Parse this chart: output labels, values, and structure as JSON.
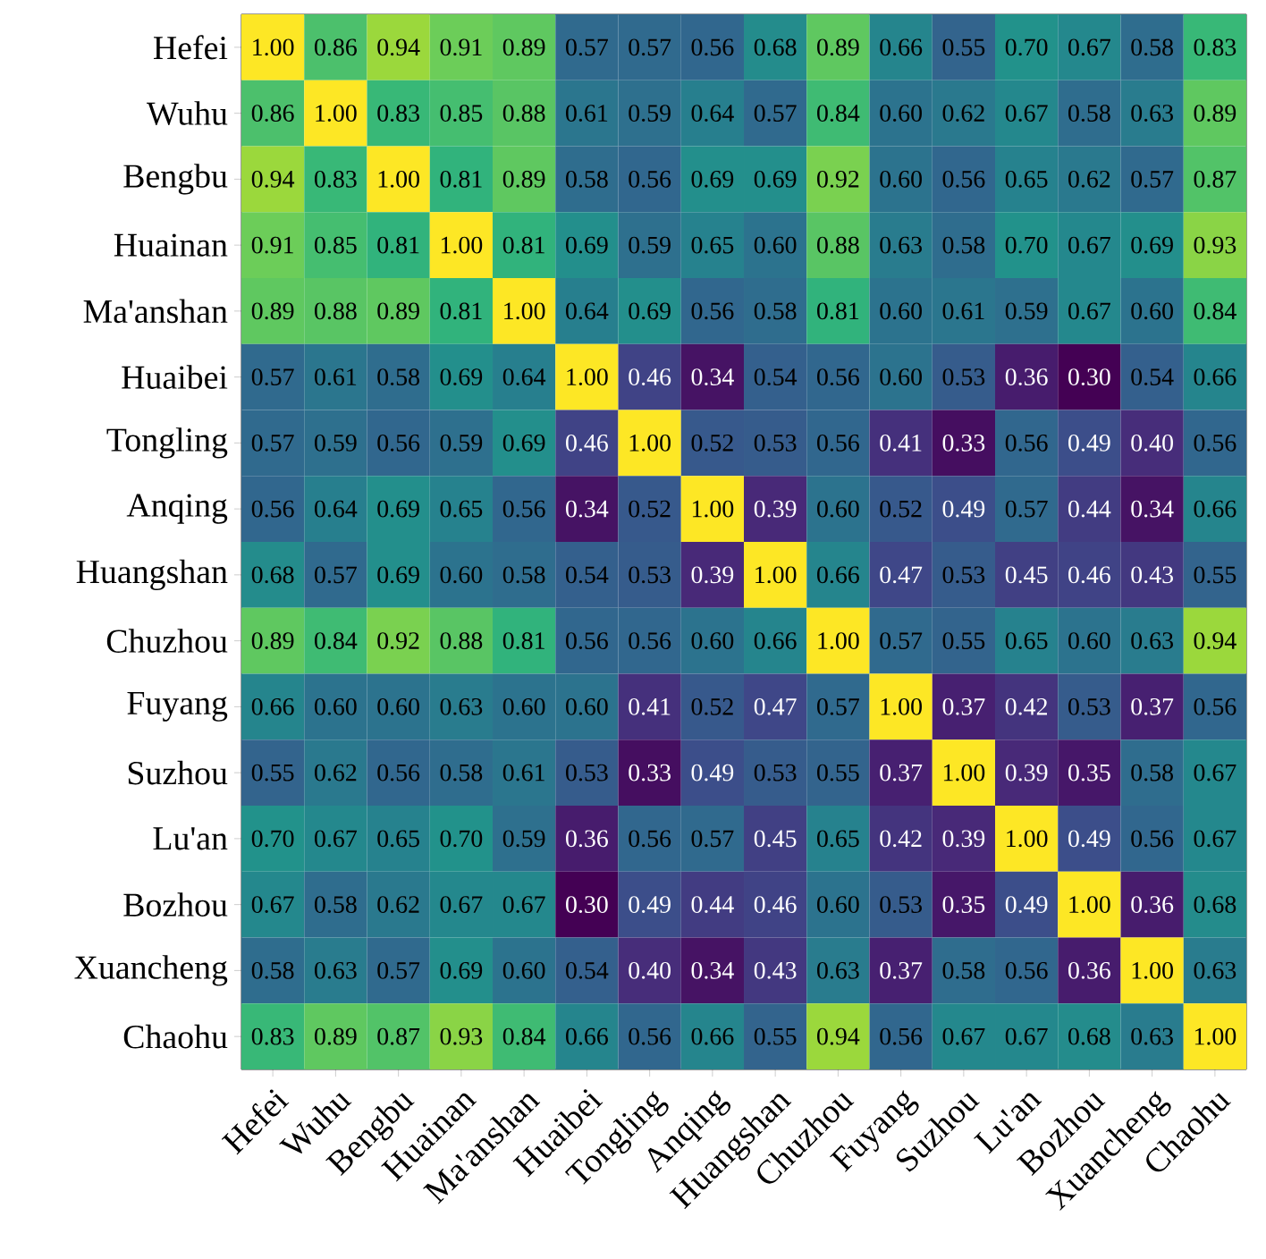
{
  "chart_data": {
    "type": "heatmap",
    "categories": [
      "Hefei",
      "Wuhu",
      "Bengbu",
      "Huainan",
      "Ma'anshan",
      "Huaibei",
      "Tongling",
      "Anqing",
      "Huangshan",
      "Chuzhou",
      "Fuyang",
      "Suzhou",
      "Lu'an",
      "Bozhou",
      "Xuancheng",
      "Chaohu"
    ],
    "y_categories": [
      "Hefei",
      "Wuhu",
      "Bengbu",
      "Huainan",
      "Ma'anshan",
      "Huaibei",
      "Tongling",
      "Anqing",
      "Huangshan",
      "Chuzhou",
      "Fuyang",
      "Suzhou",
      "Lu'an",
      "Bozhou",
      "Xuancheng",
      "Chaohu"
    ],
    "cell_labels": [
      [
        "1.00",
        "0.86",
        "0.94",
        "0.91",
        "0.89",
        "0.57",
        "0.57",
        "0.56",
        "0.68",
        "0.89",
        "0.66",
        "0.55",
        "0.70",
        "0.67",
        "0.58",
        "0.83"
      ],
      [
        "0.86",
        "1.00",
        "0.83",
        "0.85",
        "0.88",
        "0.61",
        "0.59",
        "0.64",
        "0.57",
        "0.84",
        "0.60",
        "0.62",
        "0.67",
        "0.58",
        "0.63",
        "0.89"
      ],
      [
        "0.94",
        "0.83",
        "1.00",
        "0.81",
        "0.89",
        "0.58",
        "0.56",
        "0.69",
        "0.69",
        "0.92",
        "0.60",
        "0.56",
        "0.65",
        "0.62",
        "0.57",
        "0.87"
      ],
      [
        "0.91",
        "0.85",
        "0.81",
        "1.00",
        "0.81",
        "0.69",
        "0.59",
        "0.65",
        "0.60",
        "0.88",
        "0.63",
        "0.58",
        "0.70",
        "0.67",
        "0.69",
        "0.93"
      ],
      [
        "0.89",
        "0.88",
        "0.89",
        "0.81",
        "1.00",
        "0.64",
        "0.69",
        "0.56",
        "0.58",
        "0.81",
        "0.60",
        "0.61",
        "0.59",
        "0.67",
        "0.60",
        "0.84"
      ],
      [
        "0.57",
        "0.61",
        "0.58",
        "0.69",
        "0.64",
        "1.00",
        "0.46",
        "0.34",
        "0.54",
        "0.56",
        "0.60",
        "0.53",
        "0.36",
        "0.30",
        "0.54",
        "0.66"
      ],
      [
        "0.57",
        "0.59",
        "0.56",
        "0.59",
        "0.69",
        "0.46",
        "1.00",
        "0.52",
        "0.53",
        "0.56",
        "0.41",
        "0.33",
        "0.56",
        "0.49",
        "0.40",
        "0.56"
      ],
      [
        "0.56",
        "0.64",
        "0.69",
        "0.65",
        "0.56",
        "0.34",
        "0.52",
        "1.00",
        "0.39",
        "0.60",
        "0.52",
        "0.49",
        "0.57",
        "0.44",
        "0.34",
        "0.66"
      ],
      [
        "0.68",
        "0.57",
        "0.69",
        "0.60",
        "0.58",
        "0.54",
        "0.53",
        "0.39",
        "1.00",
        "0.66",
        "0.47",
        "0.53",
        "0.45",
        "0.46",
        "0.43",
        "0.55"
      ],
      [
        "0.89",
        "0.84",
        "0.92",
        "0.88",
        "0.81",
        "0.56",
        "0.56",
        "0.60",
        "0.66",
        "1.00",
        "0.57",
        "0.55",
        "0.65",
        "0.60",
        "0.63",
        "0.94"
      ],
      [
        "0.66",
        "0.60",
        "0.60",
        "0.63",
        "0.60",
        "0.60",
        "0.41",
        "0.52",
        "0.47",
        "0.57",
        "1.00",
        "0.37",
        "0.42",
        "0.53",
        "0.37",
        "0.56"
      ],
      [
        "0.55",
        "0.62",
        "0.56",
        "0.58",
        "0.61",
        "0.53",
        "0.33",
        "0.49",
        "0.53",
        "0.55",
        "0.37",
        "1.00",
        "0.39",
        "0.35",
        "0.58",
        "0.67"
      ],
      [
        "0.70",
        "0.67",
        "0.65",
        "0.70",
        "0.59",
        "0.36",
        "0.56",
        "0.57",
        "0.45",
        "0.65",
        "0.42",
        "0.39",
        "1.00",
        "0.49",
        "0.56",
        "0.67"
      ],
      [
        "0.67",
        "0.58",
        "0.62",
        "0.67",
        "0.67",
        "0.30",
        "0.49",
        "0.44",
        "0.46",
        "0.60",
        "0.53",
        "0.35",
        "0.49",
        "1.00",
        "0.36",
        "0.68"
      ],
      [
        "0.58",
        "0.63",
        "0.57",
        "0.69",
        "0.60",
        "0.54",
        "0.40",
        "0.34",
        "0.43",
        "0.63",
        "0.37",
        "0.58",
        "0.56",
        "0.36",
        "1.00",
        "0.63"
      ],
      [
        "0.83",
        "0.89",
        "0.87",
        "0.93",
        "0.84",
        "0.66",
        "0.56",
        "0.66",
        "0.55",
        "0.94",
        "0.56",
        "0.67",
        "0.67",
        "0.68",
        "0.63",
        "1.00"
      ]
    ],
    "cells": [
      [
        1.0,
        0.86,
        0.94,
        0.91,
        0.89,
        0.57,
        0.57,
        0.56,
        0.68,
        0.89,
        0.66,
        0.55,
        0.7,
        0.67,
        0.58,
        0.83
      ],
      [
        0.86,
        1.0,
        0.83,
        0.85,
        0.88,
        0.61,
        0.59,
        0.64,
        0.57,
        0.84,
        0.6,
        0.62,
        0.67,
        0.58,
        0.63,
        0.89
      ],
      [
        0.94,
        0.83,
        1.0,
        0.81,
        0.89,
        0.58,
        0.56,
        0.69,
        0.69,
        0.92,
        0.6,
        0.56,
        0.65,
        0.62,
        0.57,
        0.87
      ],
      [
        0.91,
        0.85,
        0.81,
        1.0,
        0.81,
        0.69,
        0.59,
        0.65,
        0.6,
        0.88,
        0.63,
        0.58,
        0.7,
        0.67,
        0.69,
        0.93
      ],
      [
        0.89,
        0.88,
        0.89,
        0.81,
        1.0,
        0.64,
        0.69,
        0.56,
        0.58,
        0.81,
        0.6,
        0.61,
        0.59,
        0.67,
        0.6,
        0.84
      ],
      [
        0.57,
        0.61,
        0.58,
        0.69,
        0.64,
        1.0,
        0.46,
        0.34,
        0.54,
        0.56,
        0.6,
        0.53,
        0.36,
        0.3,
        0.54,
        0.66
      ],
      [
        0.57,
        0.59,
        0.56,
        0.59,
        0.69,
        0.46,
        1.0,
        0.52,
        0.53,
        0.56,
        0.41,
        0.33,
        0.56,
        0.49,
        0.4,
        0.56
      ],
      [
        0.56,
        0.64,
        0.69,
        0.65,
        0.56,
        0.34,
        0.52,
        1.0,
        0.39,
        0.6,
        0.52,
        0.49,
        0.57,
        0.44,
        0.34,
        0.66
      ],
      [
        0.68,
        0.57,
        0.69,
        0.6,
        0.58,
        0.54,
        0.53,
        0.39,
        1.0,
        0.66,
        0.47,
        0.53,
        0.45,
        0.46,
        0.43,
        0.55
      ],
      [
        0.89,
        0.84,
        0.92,
        0.88,
        0.81,
        0.56,
        0.56,
        0.6,
        0.66,
        1.0,
        0.57,
        0.55,
        0.65,
        0.6,
        0.63,
        0.94
      ],
      [
        0.66,
        0.6,
        0.6,
        0.63,
        0.6,
        0.6,
        0.41,
        0.52,
        0.47,
        0.57,
        1.0,
        0.37,
        0.42,
        0.53,
        0.37,
        0.56
      ],
      [
        0.55,
        0.62,
        0.56,
        0.58,
        0.61,
        0.53,
        0.33,
        0.49,
        0.53,
        0.55,
        0.37,
        1.0,
        0.39,
        0.35,
        0.58,
        0.67
      ],
      [
        0.7,
        0.67,
        0.65,
        0.7,
        0.59,
        0.36,
        0.56,
        0.57,
        0.45,
        0.65,
        0.42,
        0.39,
        1.0,
        0.49,
        0.56,
        0.67
      ],
      [
        0.67,
        0.58,
        0.62,
        0.67,
        0.67,
        0.3,
        0.49,
        0.44,
        0.46,
        0.6,
        0.53,
        0.35,
        0.49,
        1.0,
        0.36,
        0.68
      ],
      [
        0.58,
        0.63,
        0.57,
        0.69,
        0.6,
        0.54,
        0.4,
        0.34,
        0.43,
        0.63,
        0.37,
        0.58,
        0.56,
        0.36,
        1.0,
        0.63
      ],
      [
        0.83,
        0.89,
        0.87,
        0.93,
        0.84,
        0.66,
        0.56,
        0.66,
        0.55,
        0.94,
        0.56,
        0.67,
        0.67,
        0.68,
        0.63,
        1.0
      ]
    ]
  }
}
